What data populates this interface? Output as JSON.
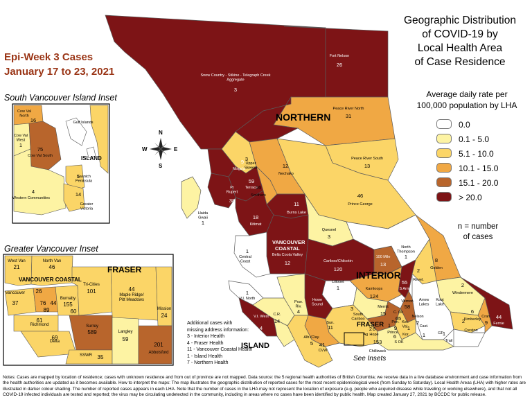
{
  "epi_week": {
    "line1": "Epi-Week 3 Cases",
    "line2": "January 17 to 23, 2021"
  },
  "title": {
    "line1": "Geographic Distribution",
    "line2": "of COVID-19 by",
    "line3": "Local Health Area",
    "line4": "of Case Residence"
  },
  "legend": {
    "title_line1": "Average daily rate per",
    "title_line2": "100,000 population by LHA",
    "items": [
      {
        "label": "0.0",
        "color": "#ffffff"
      },
      {
        "label": "0.1 - 5.0",
        "color": "#fdf3a3"
      },
      {
        "label": "5.1 - 10.0",
        "color": "#fbd567"
      },
      {
        "label": "10.1 - 15.0",
        "color": "#f0a844"
      },
      {
        "label": "15.1 - 20.0",
        "color": "#b8652c"
      },
      {
        "label": "> 20.0",
        "color": "#7d1416"
      }
    ],
    "note_line1": "n = number",
    "note_line2": "of cases"
  },
  "compass": {
    "n": "N",
    "s": "S",
    "e": "E",
    "w": "W"
  },
  "insets": {
    "south_vi_title": "South Vancouver Island Inset",
    "greater_van_title": "Greater Vancouver Inset",
    "see_insets": "See Insets"
  },
  "regions": {
    "northern": "NORTHERN",
    "interior": "INTERIOR",
    "vancouver_coastal_1": "VANCOUVER",
    "vancouver_coastal_2": "COASTAL",
    "island": "ISLAND",
    "fraser": "FRASER"
  },
  "map_labels": [
    {
      "name": "Snow Country - Stikine - Telegraph Creek",
      "sub": "Aggregate",
      "n": "3"
    },
    {
      "name": "Fort Nelson",
      "n": "26"
    },
    {
      "name": "Peace River North",
      "n": "31"
    },
    {
      "name": "Peace River South",
      "n": "13"
    },
    {
      "name": "Upper",
      "sub": "Skeena",
      "n": "3"
    },
    {
      "name": "Nisga'a",
      "n": "9"
    },
    {
      "name": "Terrace",
      "n": "59"
    },
    {
      "name": "Nechako",
      "n": "12"
    },
    {
      "name": "Pr",
      "sub": "Rupert",
      "n": "38"
    },
    {
      "name": "Smithers",
      "n": "16"
    },
    {
      "name": "Burns Lake",
      "n": "11"
    },
    {
      "name": "Prince George",
      "n": "46"
    },
    {
      "name": "Haida",
      "sub": "Gwaii",
      "n": "1"
    },
    {
      "name": "Kitimat",
      "n": "18"
    },
    {
      "name": "Quesnel",
      "n": "3"
    },
    {
      "name": "Bella Coola Valley",
      "n": "12"
    },
    {
      "name": "Central",
      "sub": "Coast",
      "n": "1"
    },
    {
      "name": "Cariboo/Chilcotin",
      "n": "120"
    },
    {
      "name": "100 Mile",
      "n": "13"
    },
    {
      "name": "North",
      "sub": "Thompson",
      "n": "1"
    },
    {
      "name": "Golden",
      "n": "8"
    },
    {
      "name": "Revel.",
      "n": "2"
    },
    {
      "name": "Lillooet",
      "n": "1"
    },
    {
      "name": "Kamloops",
      "n": "124"
    },
    {
      "name": "S Arm",
      "n": "55"
    },
    {
      "name": "Vernon",
      "n": "58"
    },
    {
      "name": "Windermere",
      "n": "2"
    },
    {
      "name": "Arrow",
      "sub": "Lakes"
    },
    {
      "name": "Koot",
      "sub": "Lake"
    },
    {
      "name": "Kimberley",
      "n": "6"
    },
    {
      "name": "Cran.",
      "n": "9"
    },
    {
      "name": "Fernie",
      "n": "44"
    },
    {
      "name": "Creston",
      "n": "2"
    },
    {
      "name": "Trail",
      "n": "1"
    },
    {
      "name": "V.I. North",
      "n": "1"
    },
    {
      "name": "V.I. West",
      "n": "4"
    },
    {
      "name": "C.R.",
      "n": "14"
    },
    {
      "name": "Pow.",
      "sub": "Riv.",
      "n": "4"
    },
    {
      "name": "Howe",
      "sub": "Sound",
      "n": "224"
    },
    {
      "name": "South",
      "sub": "Cariboo",
      "n": "3"
    },
    {
      "name": "Merritt",
      "n": "15"
    },
    {
      "name": "C. Ok",
      "n": "65"
    },
    {
      "name": "Pen.",
      "n": "9"
    },
    {
      "name": "Ket.",
      "sub": "Val."
    },
    {
      "name": "Nelson",
      "n": "2"
    },
    {
      "name": "Cast.",
      "n": "1"
    },
    {
      "name": "Grand Forks",
      "sub": "GF"
    },
    {
      "name": "Kootenay",
      "sub": "Kor.",
      "n": "1"
    },
    {
      "name": "S OK",
      "n": "6"
    },
    {
      "name": "Princeton",
      "sub": "Prince",
      "n": "1"
    },
    {
      "name": "Alb./Clay.",
      "n": "5"
    },
    {
      "name": "CVW",
      "n": "41"
    },
    {
      "name": "Sun.",
      "n": "11"
    },
    {
      "name": "Hope",
      "n": "8"
    },
    {
      "name": "Agassiz",
      "sub": "Ag",
      "n": "2"
    },
    {
      "name": "Chilliwack",
      "n": "153"
    }
  ],
  "svi_labels": [
    {
      "name": "Cow Val",
      "sub": "North",
      "n": "16"
    },
    {
      "name": "Gulf Islands"
    },
    {
      "name": "Cow Val",
      "sub": "West",
      "n": "1"
    },
    {
      "name": "Cow Val South",
      "n": "75"
    },
    {
      "name": "ISLAND"
    },
    {
      "name": "Saanich",
      "sub": "Peninsula",
      "n": "5"
    },
    {
      "name": "Western Communities",
      "n": "4"
    },
    {
      "name": "Greater",
      "sub": "Victoria",
      "n": "14"
    }
  ],
  "gvi_labels": [
    {
      "name": "West Van",
      "n": "21"
    },
    {
      "name": "North Van",
      "n": "46"
    },
    {
      "name": "FRASER"
    },
    {
      "name": "VANCOUVER COASTAL"
    },
    {
      "name": "Tri-Cities",
      "n": "101"
    },
    {
      "name": "Maple Ridge/",
      "sub": "Pitt Meadows",
      "n": "44"
    },
    {
      "name": "Vancouver",
      "n": "37"
    },
    {
      "name": "Burnaby",
      "n": "155"
    },
    {
      "name": "Mission",
      "n": "24"
    },
    {
      "name": "Richmond",
      "n": "61"
    },
    {
      "name": "Delta",
      "n": "69"
    },
    {
      "name": "Surrey",
      "n": "589"
    },
    {
      "name": "Langley",
      "n": "59"
    },
    {
      "name": "Abbotsford",
      "n": "201"
    },
    {
      "name": "SSWR",
      "n": "35"
    },
    {
      "small": [
        "26",
        "76",
        "44",
        "89",
        "60"
      ]
    }
  ],
  "additional_cases": {
    "line1": "Additional cases with",
    "line2": "missing address information:",
    "items": [
      "3 - Interior Health",
      "4 - Fraser Health",
      "11 - Vancouver Coastal Health",
      "1 - Island Health",
      "7 - Northern Health"
    ]
  },
  "notes": "Notes: Cases are mapped by location of residence; cases with unknown residence and from out of province are not mapped. Data source: the 5 regional health authorities of British Columbia; we receive data in a live database environment and case information from the health authorities are updated as it becomes available. How to interpret the maps: The map illustrates the geographic distribution of reported cases for the most recent epidemiological week (from Sunday to Saturday). Local Health Areas (LHA) with higher rates are illustrated in darker colour shading. The number of reported cases appears in each LHA. Note that the number of cases in the LHA may not represent the location of exposure (e.g. people who acquired disease while traveling or working elsewhere), and that not all COVID-19 infected individuals are tested and reported; the virus may be circulating undetected in the community, including in areas where no cases have been identified by public health. Map created January 27, 2021 by BCCDC for public release.",
  "colors": {
    "title_accent": "#9a3516",
    "border": "#5a5a5a"
  }
}
